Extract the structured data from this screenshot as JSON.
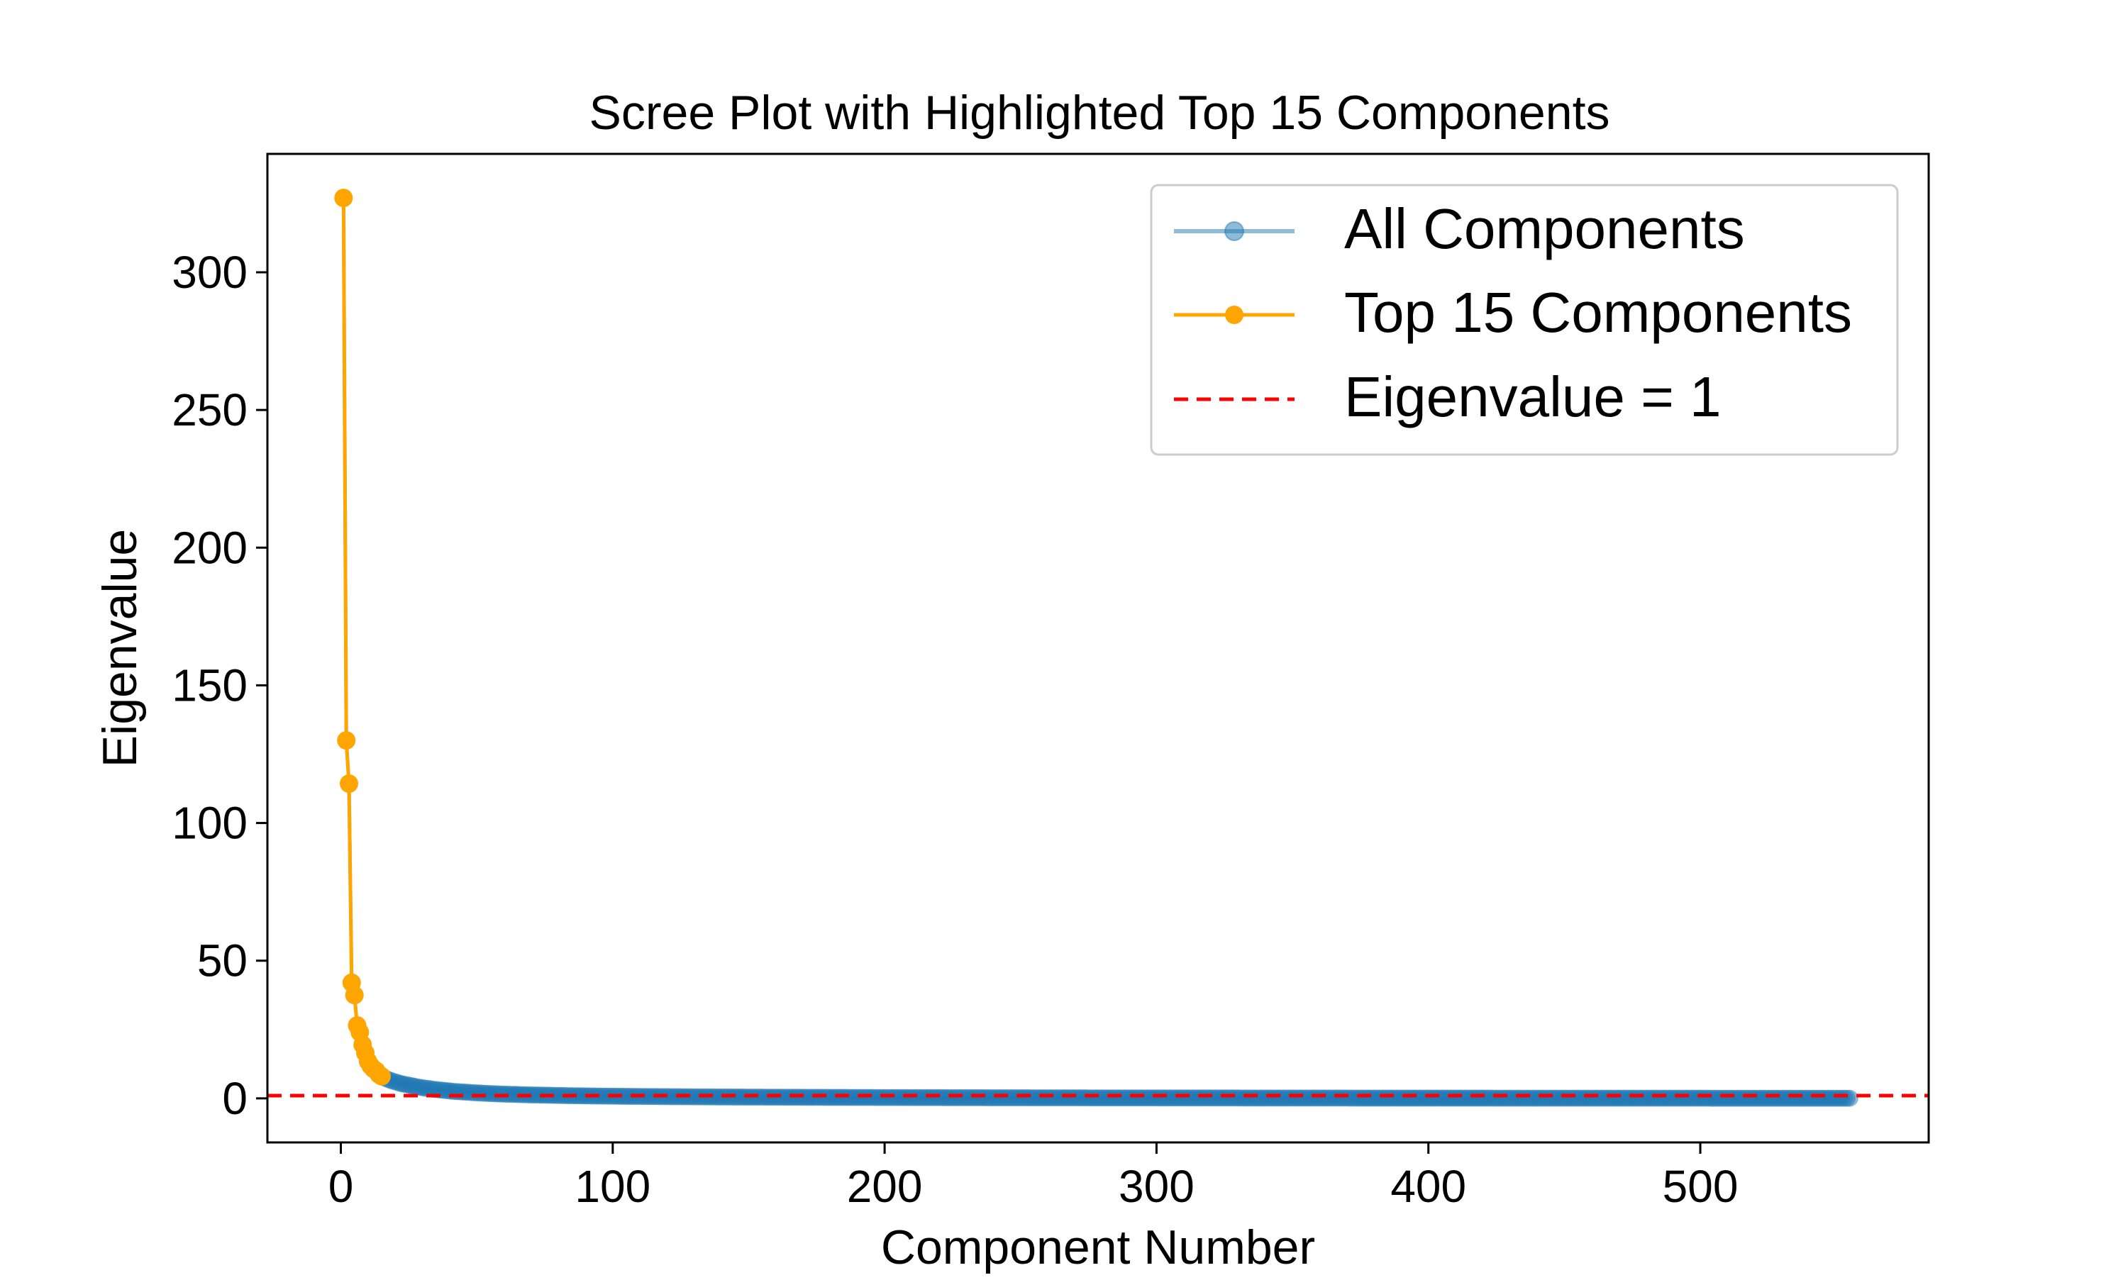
{
  "chart_data": {
    "type": "line",
    "title": "Scree Plot with Highlighted Top 15 Components",
    "xlabel": "Component Number",
    "ylabel": "Eigenvalue",
    "xlim": [
      -27,
      584
    ],
    "ylim": [
      -16,
      343
    ],
    "xticks": [
      0,
      100,
      200,
      300,
      400,
      500
    ],
    "yticks": [
      0,
      50,
      100,
      150,
      200,
      250,
      300
    ],
    "grid": false,
    "legend_position": "top-right",
    "series": [
      {
        "name": "All Components",
        "color": "#1f77b4",
        "alpha": 0.5,
        "marker": "circle",
        "x_range": [
          1,
          555
        ],
        "values": [
          327.0,
          130.0,
          114.3,
          42.0,
          37.5,
          26.5,
          24.0,
          19.5,
          16.5,
          13.5,
          11.8,
          10.7,
          10.0,
          8.7,
          8.0,
          7.4,
          7.0,
          6.6,
          6.3,
          6.0,
          5.7,
          5.4,
          5.2,
          5.0,
          4.8,
          4.6,
          4.4,
          4.2,
          4.0,
          3.9,
          3.7,
          3.6,
          3.5,
          3.3,
          3.2,
          3.1,
          3.0,
          2.9,
          2.8,
          2.7,
          2.6,
          2.5,
          2.45,
          2.4,
          2.3,
          2.25,
          2.2,
          2.1,
          2.05,
          2.0,
          1.95,
          1.9,
          1.85,
          1.8,
          1.75,
          1.7,
          1.66,
          1.62,
          1.58,
          1.55,
          1.52,
          1.49,
          1.46,
          1.43,
          1.4,
          1.37,
          1.34,
          1.31,
          1.29,
          1.26,
          1.24,
          1.22,
          1.2,
          1.18,
          1.16,
          1.14,
          1.12,
          1.1,
          1.08,
          1.06,
          1.04,
          1.02,
          1.0,
          0.98,
          0.97,
          0.95,
          0.94,
          0.92,
          0.91,
          0.9
        ]
      },
      {
        "name": "Top 15 Components",
        "color": "#ffa500",
        "marker": "circle",
        "x": [
          1,
          2,
          3,
          4,
          5,
          6,
          7,
          8,
          9,
          10,
          11,
          12,
          13,
          14,
          15
        ],
        "values": [
          327.0,
          130.0,
          114.3,
          42.0,
          37.5,
          26.5,
          24.0,
          19.5,
          16.5,
          13.5,
          11.8,
          10.7,
          10.0,
          8.7,
          8.0
        ]
      },
      {
        "name": "Eigenvalue = 1",
        "color": "#ff0000",
        "style": "dashed",
        "hline": 1
      }
    ]
  }
}
